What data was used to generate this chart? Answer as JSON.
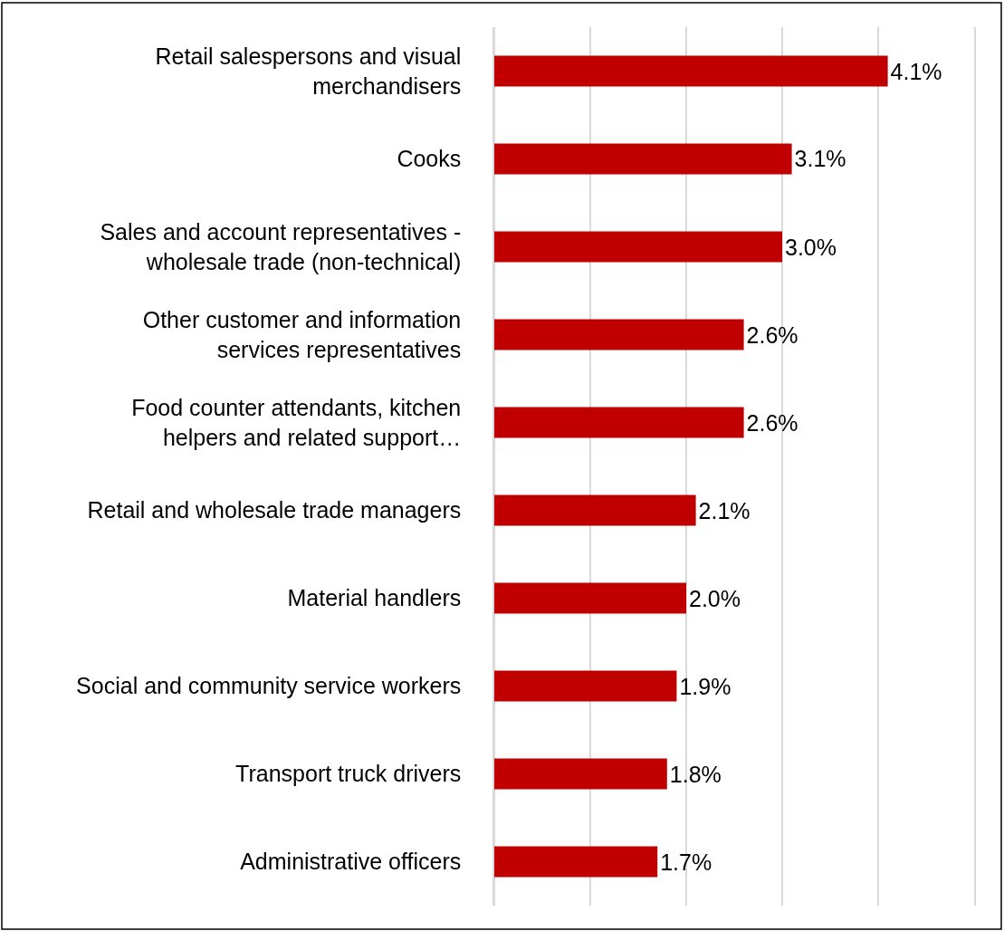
{
  "chart_data": {
    "type": "bar",
    "orientation": "horizontal",
    "categories": [
      "Retail salespersons and visual merchandisers",
      "Cooks",
      "Sales and account representatives - wholesale trade (non-technical)",
      "Other customer and information services representatives",
      "Food counter attendants, kitchen helpers and related support…",
      "Retail and wholesale trade managers",
      "Material handlers",
      "Social and community service workers",
      "Transport truck drivers",
      "Administrative officers"
    ],
    "values": [
      4.1,
      3.1,
      3.0,
      2.6,
      2.6,
      2.1,
      2.0,
      1.9,
      1.8,
      1.7
    ],
    "value_labels": [
      "4.1%",
      "3.1%",
      "3.0%",
      "2.6%",
      "2.6%",
      "2.1%",
      "2.0%",
      "1.9%",
      "1.8%",
      "1.7%"
    ],
    "color": "#c00000",
    "xlim": [
      0,
      5
    ],
    "tick_labels": "y",
    "grid": "x"
  }
}
